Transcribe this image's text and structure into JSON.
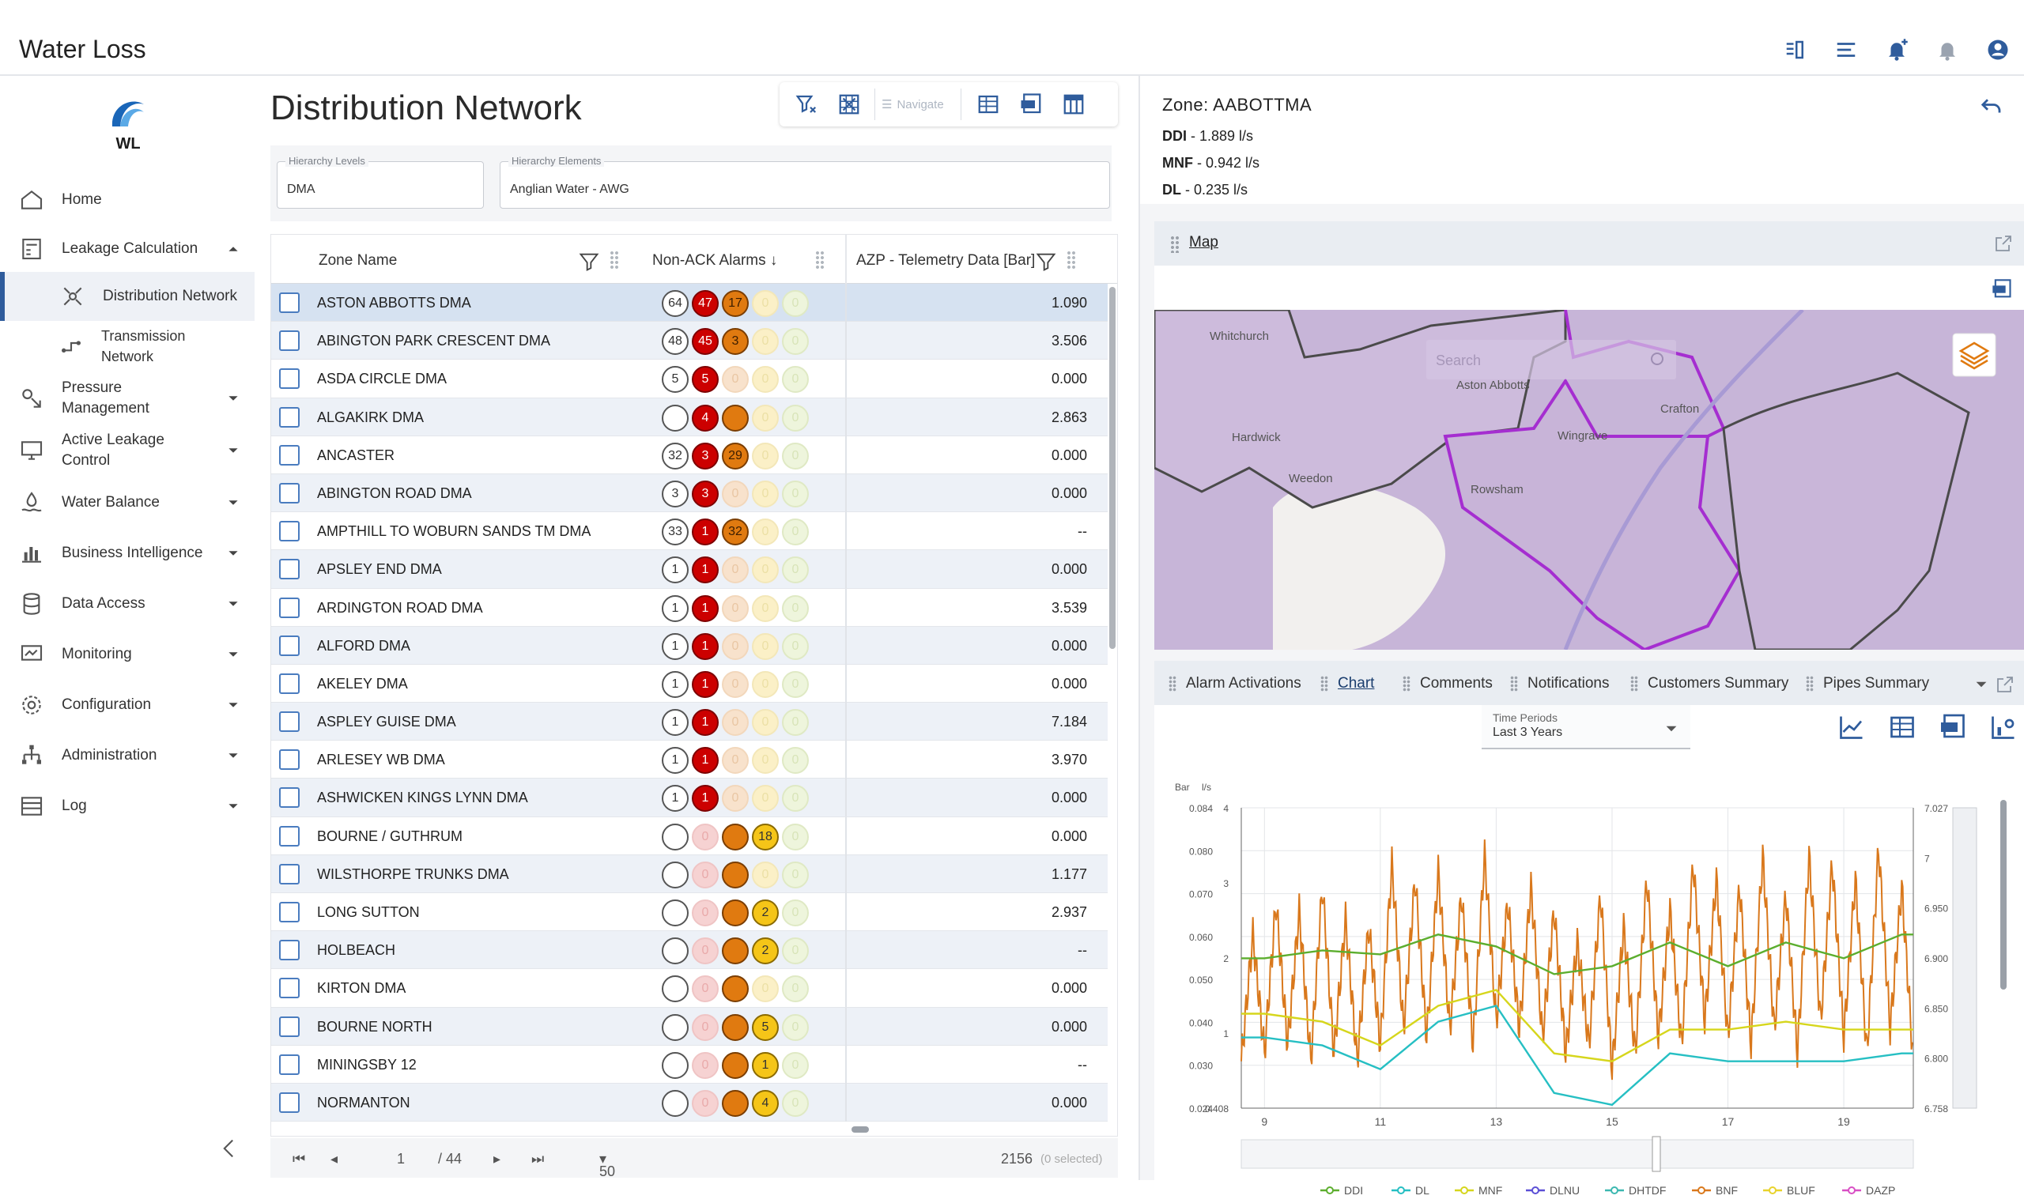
{
  "app": {
    "title": "Water Loss",
    "logo_text": "WL"
  },
  "topbar": {
    "icons": [
      "columns-icon",
      "list-icon",
      "bell-plus-icon",
      "bell-icon",
      "user-icon"
    ]
  },
  "sidebar": {
    "items": [
      {
        "label": "Home",
        "icon": "home-icon"
      },
      {
        "label": "Leakage Calculation",
        "icon": "calculator-icon",
        "expanded": true
      },
      {
        "label": "Distribution Network",
        "icon": "network-icon",
        "active": true
      },
      {
        "label": "Transmission Network",
        "icon": "transmission-icon"
      },
      {
        "label": "Pressure Management",
        "icon": "pressure-icon"
      },
      {
        "label": "Active Leakage Control",
        "icon": "monitor-icon"
      },
      {
        "label": "Water Balance",
        "icon": "water-icon"
      },
      {
        "label": "Business Intelligence",
        "icon": "bar-chart-icon"
      },
      {
        "label": "Data Access",
        "icon": "database-icon"
      },
      {
        "label": "Monitoring",
        "icon": "screen-icon"
      },
      {
        "label": "Configuration",
        "icon": "gear-icon"
      },
      {
        "label": "Administration",
        "icon": "hierarchy-icon"
      },
      {
        "label": "Log",
        "icon": "log-icon"
      }
    ]
  },
  "main": {
    "title": "Distribution Network",
    "toolbar": {
      "navigate_label": "Navigate"
    },
    "filters": {
      "hierarchy_levels": {
        "label": "Hierarchy Levels",
        "value": "DMA"
      },
      "hierarchy_elements": {
        "label": "Hierarchy Elements",
        "value": "Anglian Water - AWG"
      }
    },
    "grid": {
      "columns": [
        "Zone Name",
        "Non-ACK Alarms ↓",
        "AZP - Telemetry Data [Bar]"
      ],
      "rows": [
        {
          "zone": "ASTON ABBOTTS DMA",
          "alarms": [
            "64",
            "47",
            "17",
            "0",
            "0"
          ],
          "azp": "1.090"
        },
        {
          "zone": "ABINGTON PARK CRESCENT DMA",
          "alarms": [
            "48",
            "45",
            "3",
            "0",
            "0"
          ],
          "azp": "3.506"
        },
        {
          "zone": "ASDA CIRCLE DMA",
          "alarms": [
            "5",
            "5",
            "0",
            "0",
            "0"
          ],
          "azp": "0.000"
        },
        {
          "zone": "ALGAKIRK DMA",
          "alarms": [
            "",
            "4",
            "",
            "0",
            "0"
          ],
          "azp": "2.863"
        },
        {
          "zone": "ANCASTER",
          "alarms": [
            "32",
            "3",
            "29",
            "0",
            "0"
          ],
          "azp": "0.000"
        },
        {
          "zone": "ABINGTON ROAD DMA",
          "alarms": [
            "3",
            "3",
            "0",
            "0",
            "0"
          ],
          "azp": "0.000"
        },
        {
          "zone": "AMPTHILL TO WOBURN SANDS TM DMA",
          "alarms": [
            "33",
            "1",
            "32",
            "0",
            "0"
          ],
          "azp": "--"
        },
        {
          "zone": "APSLEY END DMA",
          "alarms": [
            "1",
            "1",
            "0",
            "0",
            "0"
          ],
          "azp": "0.000"
        },
        {
          "zone": "ARDINGTON ROAD DMA",
          "alarms": [
            "1",
            "1",
            "0",
            "0",
            "0"
          ],
          "azp": "3.539"
        },
        {
          "zone": "ALFORD DMA",
          "alarms": [
            "1",
            "1",
            "0",
            "0",
            "0"
          ],
          "azp": "0.000"
        },
        {
          "zone": "AKELEY DMA",
          "alarms": [
            "1",
            "1",
            "0",
            "0",
            "0"
          ],
          "azp": "0.000"
        },
        {
          "zone": "ASPLEY GUISE DMA",
          "alarms": [
            "1",
            "1",
            "0",
            "0",
            "0"
          ],
          "azp": "7.184"
        },
        {
          "zone": "ARLESEY WB DMA",
          "alarms": [
            "1",
            "1",
            "0",
            "0",
            "0"
          ],
          "azp": "3.970"
        },
        {
          "zone": "ASHWICKEN KINGS LYNN DMA",
          "alarms": [
            "1",
            "1",
            "0",
            "0",
            "0"
          ],
          "azp": "0.000"
        },
        {
          "zone": "BOURNE / GUTHRUM",
          "alarms": [
            "",
            "0",
            "",
            "18",
            "0"
          ],
          "azp": "0.000"
        },
        {
          "zone": "WILSTHORPE TRUNKS DMA",
          "alarms": [
            "",
            "0",
            "",
            "0",
            "0"
          ],
          "azp": "1.177"
        },
        {
          "zone": "LONG SUTTON",
          "alarms": [
            "",
            "0",
            "",
            "2",
            "0"
          ],
          "azp": "2.937"
        },
        {
          "zone": "HOLBEACH",
          "alarms": [
            "",
            "0",
            "",
            "2",
            "0"
          ],
          "azp": "--"
        },
        {
          "zone": "KIRTON DMA",
          "alarms": [
            "",
            "0",
            "",
            "0",
            "0"
          ],
          "azp": "0.000"
        },
        {
          "zone": "BOURNE NORTH",
          "alarms": [
            "",
            "0",
            "",
            "5",
            "0"
          ],
          "azp": "0.000"
        },
        {
          "zone": "MININGSBY 12",
          "alarms": [
            "",
            "0",
            "",
            "1",
            "0"
          ],
          "azp": "--"
        },
        {
          "zone": "NORMANTON",
          "alarms": [
            "",
            "0",
            "",
            "4",
            "0"
          ],
          "azp": "0.000"
        }
      ]
    },
    "pager": {
      "page": "1",
      "of_pages": "/ 44",
      "page_size": "50",
      "total": "2156",
      "selected": "(0 selected)"
    }
  },
  "zone": {
    "title": "Zone: AABOTTMA",
    "ddi_label": "DDI",
    "ddi_value": " - 1.889 l/s",
    "mnf_label": "MNF",
    "mnf_value": " - 0.942 l/s",
    "dl_label": "DL",
    "dl_value": " - 0.235 l/s"
  },
  "map": {
    "label": "Map",
    "search_placeholder": "Search",
    "places": [
      "Whitchurch",
      "Aston Abbotts",
      "Hardwick",
      "Weedon",
      "Wingrave",
      "Rowsham",
      "Crafton"
    ],
    "places_pos": [
      [
        70,
        38
      ],
      [
        382,
        100
      ],
      [
        98,
        166
      ],
      [
        170,
        218
      ],
      [
        510,
        164
      ],
      [
        400,
        232
      ],
      [
        640,
        130
      ]
    ]
  },
  "tabs": [
    "Alarm Activations",
    "Chart",
    "Comments",
    "Notifications",
    "Customers Summary",
    "Pipes Summary"
  ],
  "time_period": {
    "label": "Time Periods",
    "value": "Last 3 Years"
  },
  "chart_data": {
    "type": "line",
    "x_ticks": [
      "9",
      "11",
      "13",
      "15",
      "17",
      "19"
    ],
    "left_units": "Bar",
    "mid_units": "l/s",
    "left_ticks": [
      "0.084",
      "0.080",
      "0.070",
      "0.060",
      "0.050",
      "0.040",
      "0.030",
      "0.024"
    ],
    "mid_ticks": [
      "4",
      "3",
      "2",
      "1",
      "0.408"
    ],
    "right_ticks": [
      "7.027",
      "7",
      "6.950",
      "6.900",
      "6.850",
      "6.800",
      "6.758"
    ],
    "legend": [
      "DDI",
      "DL",
      "MNF",
      "DLNU",
      "DHTDF",
      "BNF",
      "BLUF",
      "DAZP"
    ],
    "colors": {
      "DDI": "#5cae2e",
      "DL": "#26bfc3",
      "MNF": "#d6d61c",
      "DLNU": "#5b4fd6",
      "DHTDF": "#3cb8b0",
      "BNF": "#d9781c",
      "BLUF": "#e8d32c",
      "DAZP": "#d84fc4"
    },
    "series": [
      {
        "name": "BNF",
        "x": [
          8.6,
          8.8,
          9.0,
          9.2,
          9.4,
          9.6,
          9.8,
          10.0,
          10.2,
          10.4,
          10.6,
          10.8,
          11.0,
          11.2,
          11.4,
          11.6,
          11.8,
          12.0,
          12.2,
          12.4,
          12.6,
          12.8,
          13.0,
          13.2,
          13.4,
          13.6,
          13.8,
          14.0,
          14.2,
          14.4,
          14.6,
          14.8,
          15.0,
          15.2,
          15.4,
          15.6,
          15.8,
          16.0,
          16.2,
          16.4,
          16.6,
          16.8,
          17.0,
          17.2,
          17.4,
          17.6,
          17.8,
          18.0,
          18.2,
          18.4,
          18.6,
          18.8,
          19.0,
          19.2,
          19.4,
          19.6,
          19.8,
          20.0,
          20.2
        ],
        "y": [
          1.0,
          2.6,
          1.1,
          3.0,
          1.2,
          2.9,
          1.0,
          3.2,
          1.1,
          2.8,
          1.0,
          2.7,
          1.2,
          3.5,
          1.4,
          3.3,
          1.3,
          3.4,
          1.4,
          3.1,
          1.2,
          3.6,
          1.5,
          3.0,
          1.4,
          3.2,
          1.3,
          2.9,
          1.1,
          2.5,
          1.2,
          3.1,
          0.9,
          2.7,
          1.1,
          3.3,
          1.3,
          2.9,
          1.2,
          3.5,
          1.5,
          3.3,
          1.3,
          3.2,
          1.2,
          3.6,
          1.4,
          3.1,
          1.1,
          3.6,
          1.5,
          3.5,
          1.3,
          3.3,
          1.1,
          3.7,
          1.4,
          3.2,
          1.0
        ]
      },
      {
        "name": "DDI",
        "x": [
          8.6,
          9,
          10,
          11,
          12,
          13,
          14,
          15,
          16,
          17,
          18,
          19,
          20,
          20.2
        ],
        "y": [
          2.3,
          2.3,
          2.4,
          2.35,
          2.6,
          2.45,
          2.1,
          2.2,
          2.5,
          2.2,
          2.5,
          2.3,
          2.6,
          2.6
        ]
      },
      {
        "name": "MNF",
        "x": [
          8.6,
          9,
          10,
          11,
          12,
          13,
          14,
          15,
          16,
          17,
          18,
          19,
          20,
          20.2
        ],
        "y": [
          1.6,
          1.6,
          1.5,
          1.2,
          1.7,
          1.9,
          1.1,
          1.0,
          1.4,
          1.4,
          1.5,
          1.4,
          1.4,
          1.4
        ]
      },
      {
        "name": "DL",
        "x": [
          8.6,
          9,
          10,
          11,
          12,
          13,
          14,
          15,
          16,
          17,
          18,
          19,
          20,
          20.2
        ],
        "y": [
          1.3,
          1.3,
          1.2,
          0.9,
          1.5,
          1.7,
          0.6,
          0.45,
          1.1,
          1.0,
          1.0,
          1.0,
          1.1,
          1.1
        ]
      }
    ],
    "xlim": [
      8.6,
      20.2
    ],
    "ylim": [
      0.408,
      4.2
    ]
  }
}
